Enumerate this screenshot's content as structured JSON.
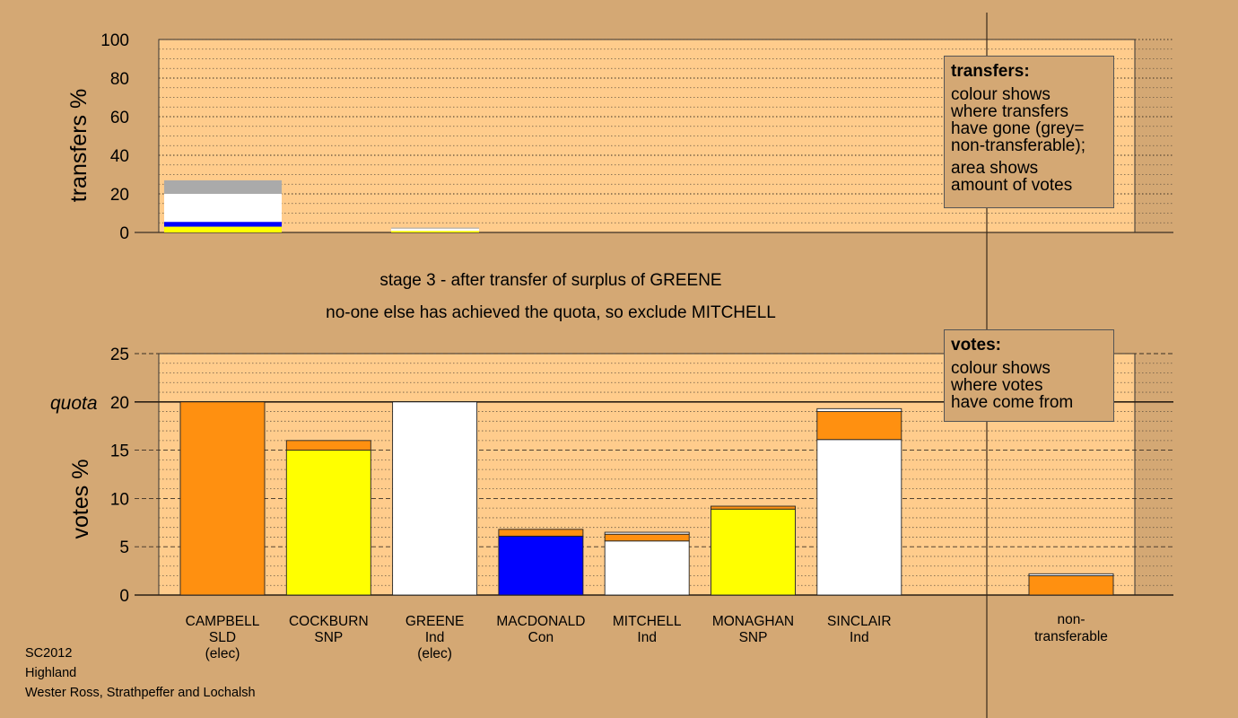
{
  "stage_title": "stage 3 - after transfer of surplus of GREENE",
  "stage_subtitle": "no-one else has achieved the quota, so exclude MITCHELL",
  "legend_transfers": {
    "title": "transfers:",
    "lines_a": [
      "colour shows",
      "where transfers",
      "have gone (grey=",
      "non-transferable);"
    ],
    "lines_b": [
      "area shows",
      "amount of votes"
    ]
  },
  "legend_votes": {
    "title": "votes:",
    "lines": [
      "colour shows",
      "where votes",
      "have come from"
    ]
  },
  "footer": [
    "SC2012",
    "Highland",
    "Wester Ross, Strathpeffer and Lochalsh"
  ],
  "colors": {
    "background": "#d4a874",
    "plot": "#ffcc8c",
    "SLD": "#ff9010",
    "SNP": "#ffff00",
    "Ind": "#ffffff",
    "Con": "#0000ff",
    "nontransferable": "#aaaaaa"
  },
  "chart_data": [
    {
      "type": "bar",
      "stacked": true,
      "ylabel": "transfers %",
      "ylim": [
        0,
        100
      ],
      "yticks": [
        0,
        20,
        40,
        60,
        80,
        100
      ],
      "categories": [
        "CAMPBELL",
        "COCKBURN",
        "GREENE"
      ],
      "bars": [
        {
          "category": "CAMPBELL",
          "segments": [
            {
              "color": "SNP",
              "value": 3
            },
            {
              "color": "Con",
              "value": 2.5
            },
            {
              "color": "Ind",
              "value": 14.5
            },
            {
              "color": "nontransferable",
              "value": 7
            }
          ]
        },
        {
          "category": "GREENE",
          "segments": [
            {
              "color": "SNP",
              "value": 0.8
            },
            {
              "color": "Ind",
              "value": 1.2
            },
            {
              "color": "nontransferable",
              "value": 0.5
            }
          ]
        }
      ]
    },
    {
      "type": "bar",
      "stacked": true,
      "ylabel": "votes %",
      "ylim": [
        0,
        25
      ],
      "yticks": [
        0,
        5,
        10,
        15,
        20,
        25
      ],
      "quota": 20,
      "quota_label": "quota",
      "candidates": [
        {
          "name": "CAMPBELL",
          "party": "SLD",
          "note": "(elec)",
          "segments": [
            {
              "color": "SLD",
              "value": 20
            }
          ]
        },
        {
          "name": "COCKBURN",
          "party": "SNP",
          "note": "",
          "segments": [
            {
              "color": "SNP",
              "value": 15
            },
            {
              "color": "SLD",
              "value": 1
            }
          ]
        },
        {
          "name": "GREENE",
          "party": "Ind",
          "note": "(elec)",
          "segments": [
            {
              "color": "Ind",
              "value": 20
            }
          ]
        },
        {
          "name": "MACDONALD",
          "party": "Con",
          "note": "",
          "segments": [
            {
              "color": "Con",
              "value": 6.1
            },
            {
              "color": "SLD",
              "value": 0.7
            }
          ]
        },
        {
          "name": "MITCHELL",
          "party": "Ind",
          "note": "",
          "segments": [
            {
              "color": "Ind",
              "value": 5.6
            },
            {
              "color": "SLD",
              "value": 0.7
            },
            {
              "color": "Ind",
              "value": 0.2
            }
          ]
        },
        {
          "name": "MONAGHAN",
          "party": "SNP",
          "note": "",
          "segments": [
            {
              "color": "SNP",
              "value": 8.9
            },
            {
              "color": "SLD",
              "value": 0.3
            }
          ]
        },
        {
          "name": "SINCLAIR",
          "party": "Ind",
          "note": "",
          "segments": [
            {
              "color": "Ind",
              "value": 16.1
            },
            {
              "color": "SLD",
              "value": 2.9
            },
            {
              "color": "Ind",
              "value": 0.3
            }
          ]
        }
      ],
      "nontransferable": {
        "label_lines": [
          "non-",
          "transferable"
        ],
        "segments": [
          {
            "color": "SLD",
            "value": 2
          },
          {
            "color": "Ind",
            "value": 0.2
          }
        ]
      }
    }
  ]
}
